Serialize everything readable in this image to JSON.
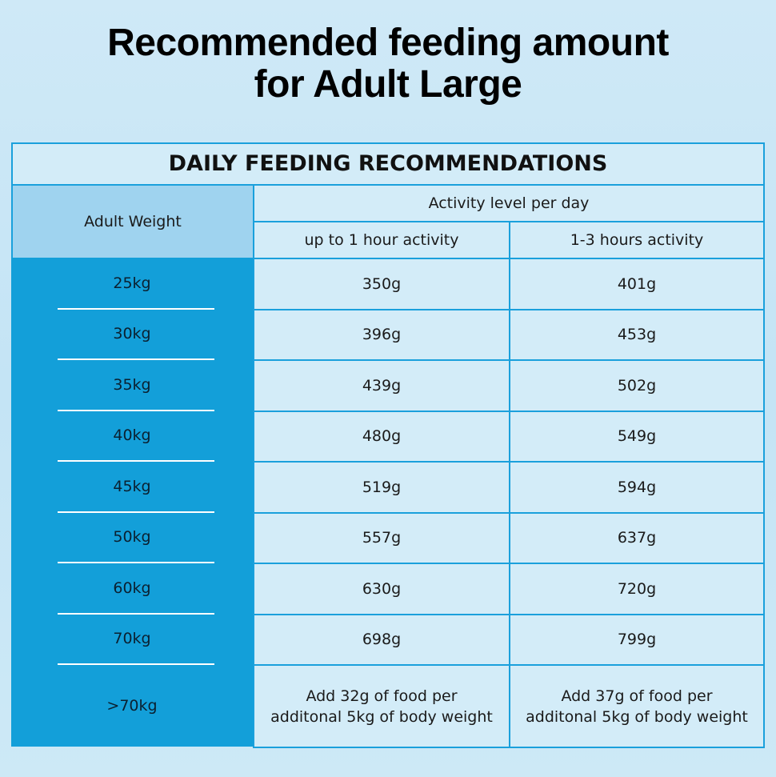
{
  "header": {
    "title_lines": [
      "Recommended feeding amount",
      "for Adult Large"
    ]
  },
  "table": {
    "title": "DAILY FEEDING RECOMMENDATIONS",
    "row_header": "Adult Weight",
    "group_header": "Activity level per day",
    "column_headers": [
      "up to 1 hour activity",
      "1-3 hours activity"
    ],
    "rows": [
      [
        "25kg",
        "350g",
        "401g"
      ],
      [
        "30kg",
        "396g",
        "453g"
      ],
      [
        "35kg",
        "439g",
        "502g"
      ],
      [
        "40kg",
        "480g",
        "549g"
      ],
      [
        "45kg",
        "519g",
        "594g"
      ],
      [
        "50kg",
        "557g",
        "637g"
      ],
      [
        "60kg",
        "630g",
        "720g"
      ],
      [
        "70kg",
        "698g",
        "799g"
      ],
      [
        ">70kg",
        "Add 32g of food per\nadditonal 5kg of  body weight",
        "Add 37g of food per\nadditonal 5kg of  body weight"
      ]
    ]
  }
}
